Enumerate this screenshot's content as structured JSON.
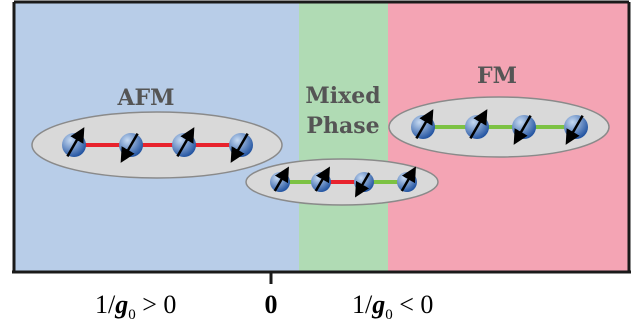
{
  "regions": [
    {
      "id": "afm",
      "color": "#b8cde8"
    },
    {
      "id": "mixed",
      "color": "#b0dbb4"
    },
    {
      "id": "fm",
      "color": "#f4a4b4"
    }
  ],
  "labels": {
    "afm": "AFM",
    "mixed_line1": "Mixed",
    "mixed_line2": "Phase",
    "fm": "FM"
  },
  "axis": {
    "left": {
      "prefix": "1/",
      "var": "g",
      "sub": "0",
      "rel": " > 0"
    },
    "zero": "0",
    "right": {
      "prefix": "1/",
      "var": "g",
      "sub": "0",
      "rel": " < 0"
    }
  },
  "chains": [
    {
      "id": "afm-chain",
      "spins": [
        "up",
        "down",
        "up",
        "down"
      ],
      "bonds": [
        "red",
        "red",
        "red"
      ]
    },
    {
      "id": "mixed-chain",
      "spins": [
        "up",
        "up",
        "down",
        "up"
      ],
      "bonds": [
        "green",
        "red",
        "green"
      ]
    },
    {
      "id": "fm-chain",
      "spins": [
        "up",
        "up",
        "down",
        "down"
      ],
      "bonds": [
        "green",
        "green",
        "green"
      ]
    }
  ],
  "colors": {
    "frame": "#1a1a1a",
    "bond_red": "#e8232d",
    "bond_green": "#7cc243",
    "ellipse_fill": "#d9d9d9",
    "ellipse_stroke": "#8a8a8a",
    "sphere_dark": "#1d4f9e",
    "sphere_light": "#c6daf2",
    "arrow": "#000000"
  }
}
